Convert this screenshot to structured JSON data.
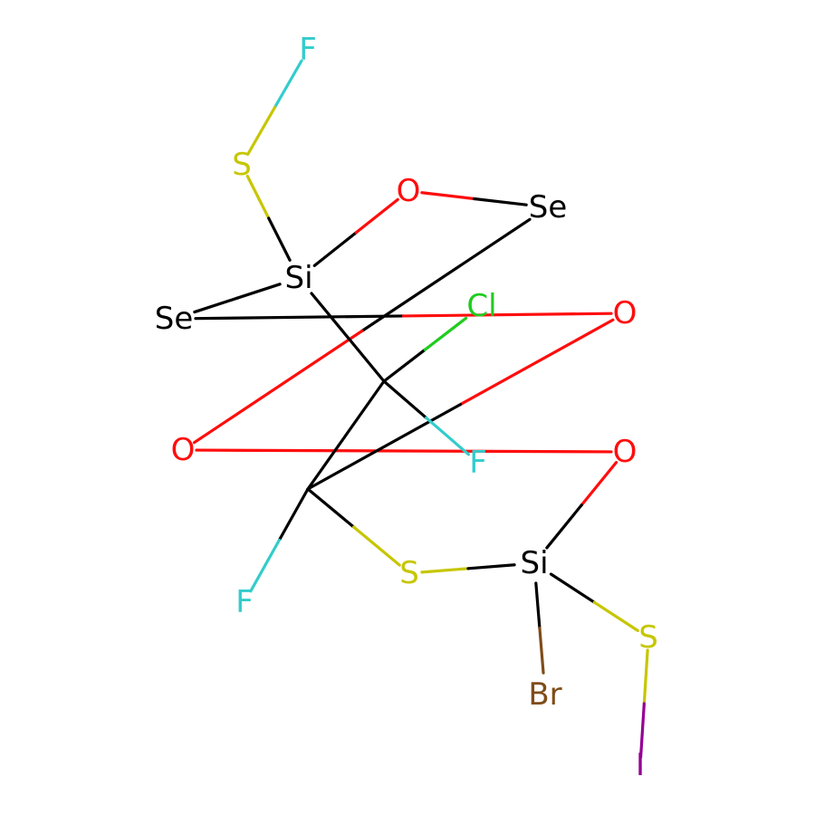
{
  "molecule": {
    "colors": {
      "carbon": "#000000",
      "O": "#ff0d0d",
      "S": "#c6c600",
      "F": "#33cccc",
      "Cl": "#1fcc1f",
      "Br": "#7f4c19",
      "I": "#940094",
      "Se": "#000000",
      "Si": "#000000"
    },
    "atoms": [
      {
        "id": "F1",
        "label": "F",
        "element": "F"
      },
      {
        "id": "S1",
        "label": "S",
        "element": "S"
      },
      {
        "id": "O1",
        "label": "O",
        "element": "O"
      },
      {
        "id": "Se1",
        "label": "Se",
        "element": "Se"
      },
      {
        "id": "Si1",
        "label": "Si",
        "element": "Si"
      },
      {
        "id": "Cl1",
        "label": "Cl",
        "element": "Cl"
      },
      {
        "id": "Se2",
        "label": "Se",
        "element": "Se"
      },
      {
        "id": "O2",
        "label": "O",
        "element": "O"
      },
      {
        "id": "C1",
        "label": "",
        "element": "C"
      },
      {
        "id": "F2",
        "label": "F",
        "element": "F"
      },
      {
        "id": "O3",
        "label": "O",
        "element": "O"
      },
      {
        "id": "O4",
        "label": "O",
        "element": "O"
      },
      {
        "id": "C2",
        "label": "",
        "element": "C"
      },
      {
        "id": "S2",
        "label": "S",
        "element": "S"
      },
      {
        "id": "Si2",
        "label": "Si",
        "element": "Si"
      },
      {
        "id": "F3",
        "label": "F",
        "element": "F"
      },
      {
        "id": "S3",
        "label": "S",
        "element": "S"
      },
      {
        "id": "Br1",
        "label": "Br",
        "element": "Br"
      },
      {
        "id": "I1",
        "label": "I",
        "element": "I"
      }
    ],
    "bonds": [
      [
        "F1",
        "S1"
      ],
      [
        "S1",
        "Si1"
      ],
      [
        "Si1",
        "O1"
      ],
      [
        "O1",
        "Se1"
      ],
      [
        "Se1",
        "O3"
      ],
      [
        "O3",
        "O4"
      ],
      [
        "O4",
        "Si2"
      ],
      [
        "Si1",
        "Se2"
      ],
      [
        "Se2",
        "O2"
      ],
      [
        "O2",
        "C2"
      ],
      [
        "Si1",
        "C1"
      ],
      [
        "C1",
        "Cl1"
      ],
      [
        "C1",
        "F2"
      ],
      [
        "C1",
        "C2"
      ],
      [
        "C2",
        "F3"
      ],
      [
        "C2",
        "S2"
      ],
      [
        "S2",
        "Si2"
      ],
      [
        "Si2",
        "Br1"
      ],
      [
        "Si2",
        "S3"
      ],
      [
        "S3",
        "I1"
      ]
    ]
  }
}
